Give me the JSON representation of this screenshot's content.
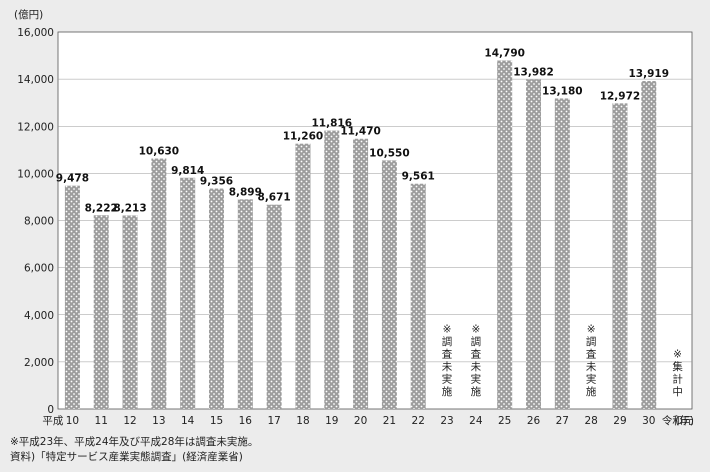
{
  "chart_data": {
    "type": "bar",
    "unit_label": "(億円)",
    "x_title": "(年)",
    "x_prefix": "平成",
    "ylim": [
      0,
      16000
    ],
    "yticks": [
      0,
      2000,
      4000,
      6000,
      8000,
      10000,
      12000,
      14000,
      16000
    ],
    "ytick_labels": [
      "0",
      "2,000",
      "4,000",
      "6,000",
      "8,000",
      "10,000",
      "12,000",
      "14,000",
      "16,000"
    ],
    "grid": "horizontal",
    "bar_color": "#9d9d9d",
    "categories": [
      "10",
      "11",
      "12",
      "13",
      "14",
      "15",
      "16",
      "17",
      "18",
      "19",
      "20",
      "21",
      "22",
      "23",
      "24",
      "25",
      "26",
      "27",
      "28",
      "29",
      "30",
      "令和元"
    ],
    "values": [
      9478,
      8222,
      8213,
      10630,
      9814,
      9356,
      8899,
      8671,
      11260,
      11816,
      11470,
      10550,
      9561,
      null,
      null,
      14790,
      13982,
      13180,
      null,
      12972,
      13919,
      null
    ],
    "value_labels": [
      "9,478",
      "8,222",
      "8,213",
      "10,630",
      "9,814",
      "9,356",
      "8,899",
      "8,671",
      "11,260",
      "11,816",
      "11,470",
      "10,550",
      "9,561",
      "",
      "",
      "14,790",
      "13,982",
      "13,180",
      "",
      "12,972",
      "13,919",
      ""
    ],
    "annotations": [
      {
        "category": "23",
        "text": "※調査未実施"
      },
      {
        "category": "24",
        "text": "※調査未実施"
      },
      {
        "category": "28",
        "text": "※調査未実施"
      },
      {
        "category": "令和元",
        "text": "※集計中"
      }
    ]
  },
  "footnotes": [
    "※平成23年、平成24年及び平成28年は調査未実施。",
    "資料)「特定サービス産業実態調査」(経済産業省)"
  ]
}
